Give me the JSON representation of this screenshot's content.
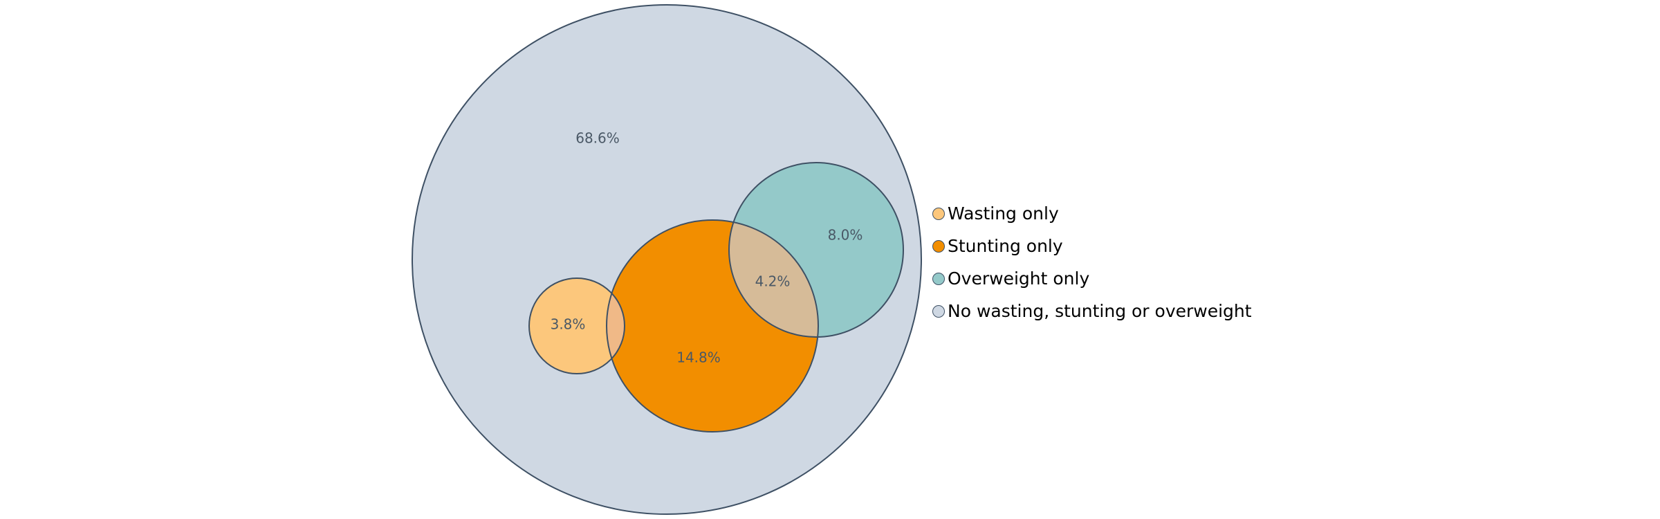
{
  "diagram": {
    "type": "nested-venn",
    "sets": [
      {
        "key": "none",
        "label": "No wasting, stunting or overweight",
        "color": "#cfd8e3",
        "value_label": "68.6%"
      },
      {
        "key": "wasting",
        "label": "Wasting only",
        "color": "#fcc77c",
        "value_label": "3.8%"
      },
      {
        "key": "stunting",
        "label": "Stunting only",
        "color": "#f28e00",
        "value_label": "14.8%"
      },
      {
        "key": "overweight",
        "label": "Overweight only",
        "color": "#94c9c9",
        "value_label": "8.0%"
      }
    ],
    "intersections": [
      {
        "sets": [
          "wasting",
          "stunting"
        ],
        "color": "#f0b987"
      },
      {
        "sets": [
          "stunting",
          "overweight"
        ],
        "color": "#d6bb98",
        "value_label": "4.2%"
      }
    ],
    "stroke_color": "#3e5064",
    "label_color": "#4a5866"
  },
  "legend": {
    "items": [
      {
        "label": "Wasting only",
        "color": "#fcc77c"
      },
      {
        "label": "Stunting only",
        "color": "#f28e00"
      },
      {
        "label": "Overweight only",
        "color": "#94c9c9"
      },
      {
        "label": "No wasting, stunting or overweight",
        "color": "#cfd8e3"
      }
    ]
  }
}
